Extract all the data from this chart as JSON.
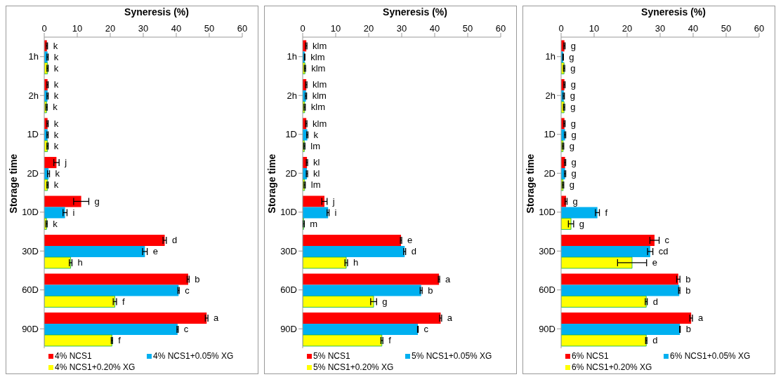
{
  "chart_data": [
    {
      "type": "bar",
      "orientation": "horizontal",
      "xlabel": "Syneresis (%)",
      "ylabel": "Storage time",
      "categories": [
        "1h",
        "2h",
        "1D",
        "2D",
        "10D",
        "30D",
        "60D",
        "90D"
      ],
      "xlim": [
        0,
        60
      ],
      "xticks": [
        0,
        10,
        20,
        30,
        40,
        50,
        60
      ],
      "legend": "bottom",
      "series": [
        {
          "name": "4% NCS1",
          "color": "#ff0000",
          "values": [
            0.8,
            1.0,
            1.0,
            3.7,
            11.2,
            36.5,
            43.6,
            49.2
          ],
          "errors": [
            0.2,
            0.2,
            0.2,
            0.8,
            2.3,
            0.5,
            0.3,
            0.4
          ],
          "value_labels": [
            "k",
            "k",
            "k",
            "j",
            "g",
            "d",
            "b",
            "a"
          ]
        },
        {
          "name": "4% NCS1+0.05% XG",
          "color": "#00b0f0",
          "values": [
            1.0,
            1.0,
            1.0,
            1.3,
            6.3,
            30.5,
            40.7,
            40.4
          ],
          "errors": [
            0.2,
            0.2,
            0.2,
            0.3,
            0.6,
            0.7,
            0.2,
            0.2
          ],
          "value_labels": [
            "k",
            "k",
            "k",
            "k",
            "i",
            "e",
            "c",
            "c"
          ]
        },
        {
          "name": "4% NCS1+0.20% XG",
          "color": "#ffff00",
          "values": [
            1.0,
            0.7,
            1.0,
            1.0,
            0.7,
            8.0,
            21.4,
            20.5
          ],
          "errors": [
            0.2,
            0.2,
            0.2,
            0.2,
            0.2,
            0.4,
            0.5,
            0.2
          ],
          "value_labels": [
            "k",
            "k",
            "k",
            "k",
            "k",
            "h",
            "f",
            "f"
          ]
        }
      ]
    },
    {
      "type": "bar",
      "orientation": "horizontal",
      "xlabel": "Syneresis (%)",
      "ylabel": "Storage time",
      "categories": [
        "1h",
        "2h",
        "1D",
        "2D",
        "10D",
        "30D",
        "60D",
        "90D"
      ],
      "xlim": [
        0,
        60
      ],
      "xticks": [
        0,
        10,
        20,
        30,
        40,
        50,
        60
      ],
      "legend": "bottom",
      "series": [
        {
          "name": "5% NCS1",
          "color": "#ff0000",
          "values": [
            1.1,
            1.1,
            1.1,
            1.3,
            6.6,
            29.8,
            41.3,
            41.8
          ],
          "errors": [
            0.2,
            0.2,
            0.2,
            0.2,
            0.8,
            0.2,
            0.2,
            0.3
          ],
          "value_labels": [
            "klm",
            "klm",
            "klm",
            "kl",
            "j",
            "e",
            "a",
            "a"
          ]
        },
        {
          "name": "5% NCS1+0.05% XG",
          "color": "#00b0f0",
          "values": [
            0.6,
            1.0,
            1.4,
            1.3,
            7.7,
            30.9,
            35.9,
            34.9
          ],
          "errors": [
            0.1,
            0.2,
            0.2,
            0.2,
            0.3,
            0.3,
            0.3,
            0.1
          ],
          "value_labels": [
            "klm",
            "klm",
            "k",
            "kl",
            "i",
            "d",
            "b",
            "c"
          ]
        },
        {
          "name": "5% NCS1+0.20% XG",
          "color": "#ffff00",
          "values": [
            0.7,
            0.6,
            0.5,
            0.6,
            0.3,
            13.2,
            21.5,
            24.0
          ],
          "errors": [
            0.2,
            0.2,
            0.2,
            0.2,
            0.2,
            0.4,
            0.9,
            0.3
          ],
          "value_labels": [
            "klm",
            "klm",
            "lm",
            "lm",
            "m",
            "h",
            "g",
            "f"
          ]
        }
      ]
    },
    {
      "type": "bar",
      "orientation": "horizontal",
      "xlabel": "Syneresis (%)",
      "ylabel": "Storage time",
      "categories": [
        "1h",
        "2h",
        "1D",
        "2D",
        "10D",
        "30D",
        "60D",
        "90D"
      ],
      "xlim": [
        0,
        60
      ],
      "xticks": [
        0,
        10,
        20,
        30,
        40,
        50,
        60
      ],
      "legend": "bottom",
      "series": [
        {
          "name": "6% NCS1",
          "color": "#ff0000",
          "values": [
            1.0,
            1.0,
            1.0,
            1.2,
            1.5,
            28.3,
            35.5,
            39.4
          ],
          "errors": [
            0.2,
            0.2,
            0.2,
            0.2,
            0.3,
            1.4,
            0.5,
            0.4
          ],
          "value_labels": [
            "g",
            "g",
            "g",
            "g",
            "g",
            "c",
            "b",
            "a"
          ]
        },
        {
          "name": "6% NCS1+0.05% XG",
          "color": "#00b0f0",
          "values": [
            0.6,
            0.8,
            1.2,
            1.2,
            11.0,
            27.0,
            35.8,
            36.0
          ],
          "errors": [
            0.1,
            0.2,
            0.2,
            0.2,
            0.6,
            0.8,
            0.2,
            0.1
          ],
          "value_labels": [
            "g",
            "g",
            "g",
            "g",
            "f",
            "cd",
            "b",
            "b"
          ]
        },
        {
          "name": "6% NCS1+0.20% XG",
          "color": "#ffff00",
          "values": [
            0.9,
            0.9,
            0.6,
            0.6,
            3.0,
            21.5,
            25.8,
            25.8
          ],
          "errors": [
            0.2,
            0.2,
            0.2,
            0.2,
            0.8,
            4.4,
            0.3,
            0.2
          ],
          "value_labels": [
            "g",
            "g",
            "g",
            "g",
            "g",
            "e",
            "d",
            "d"
          ]
        }
      ]
    }
  ]
}
